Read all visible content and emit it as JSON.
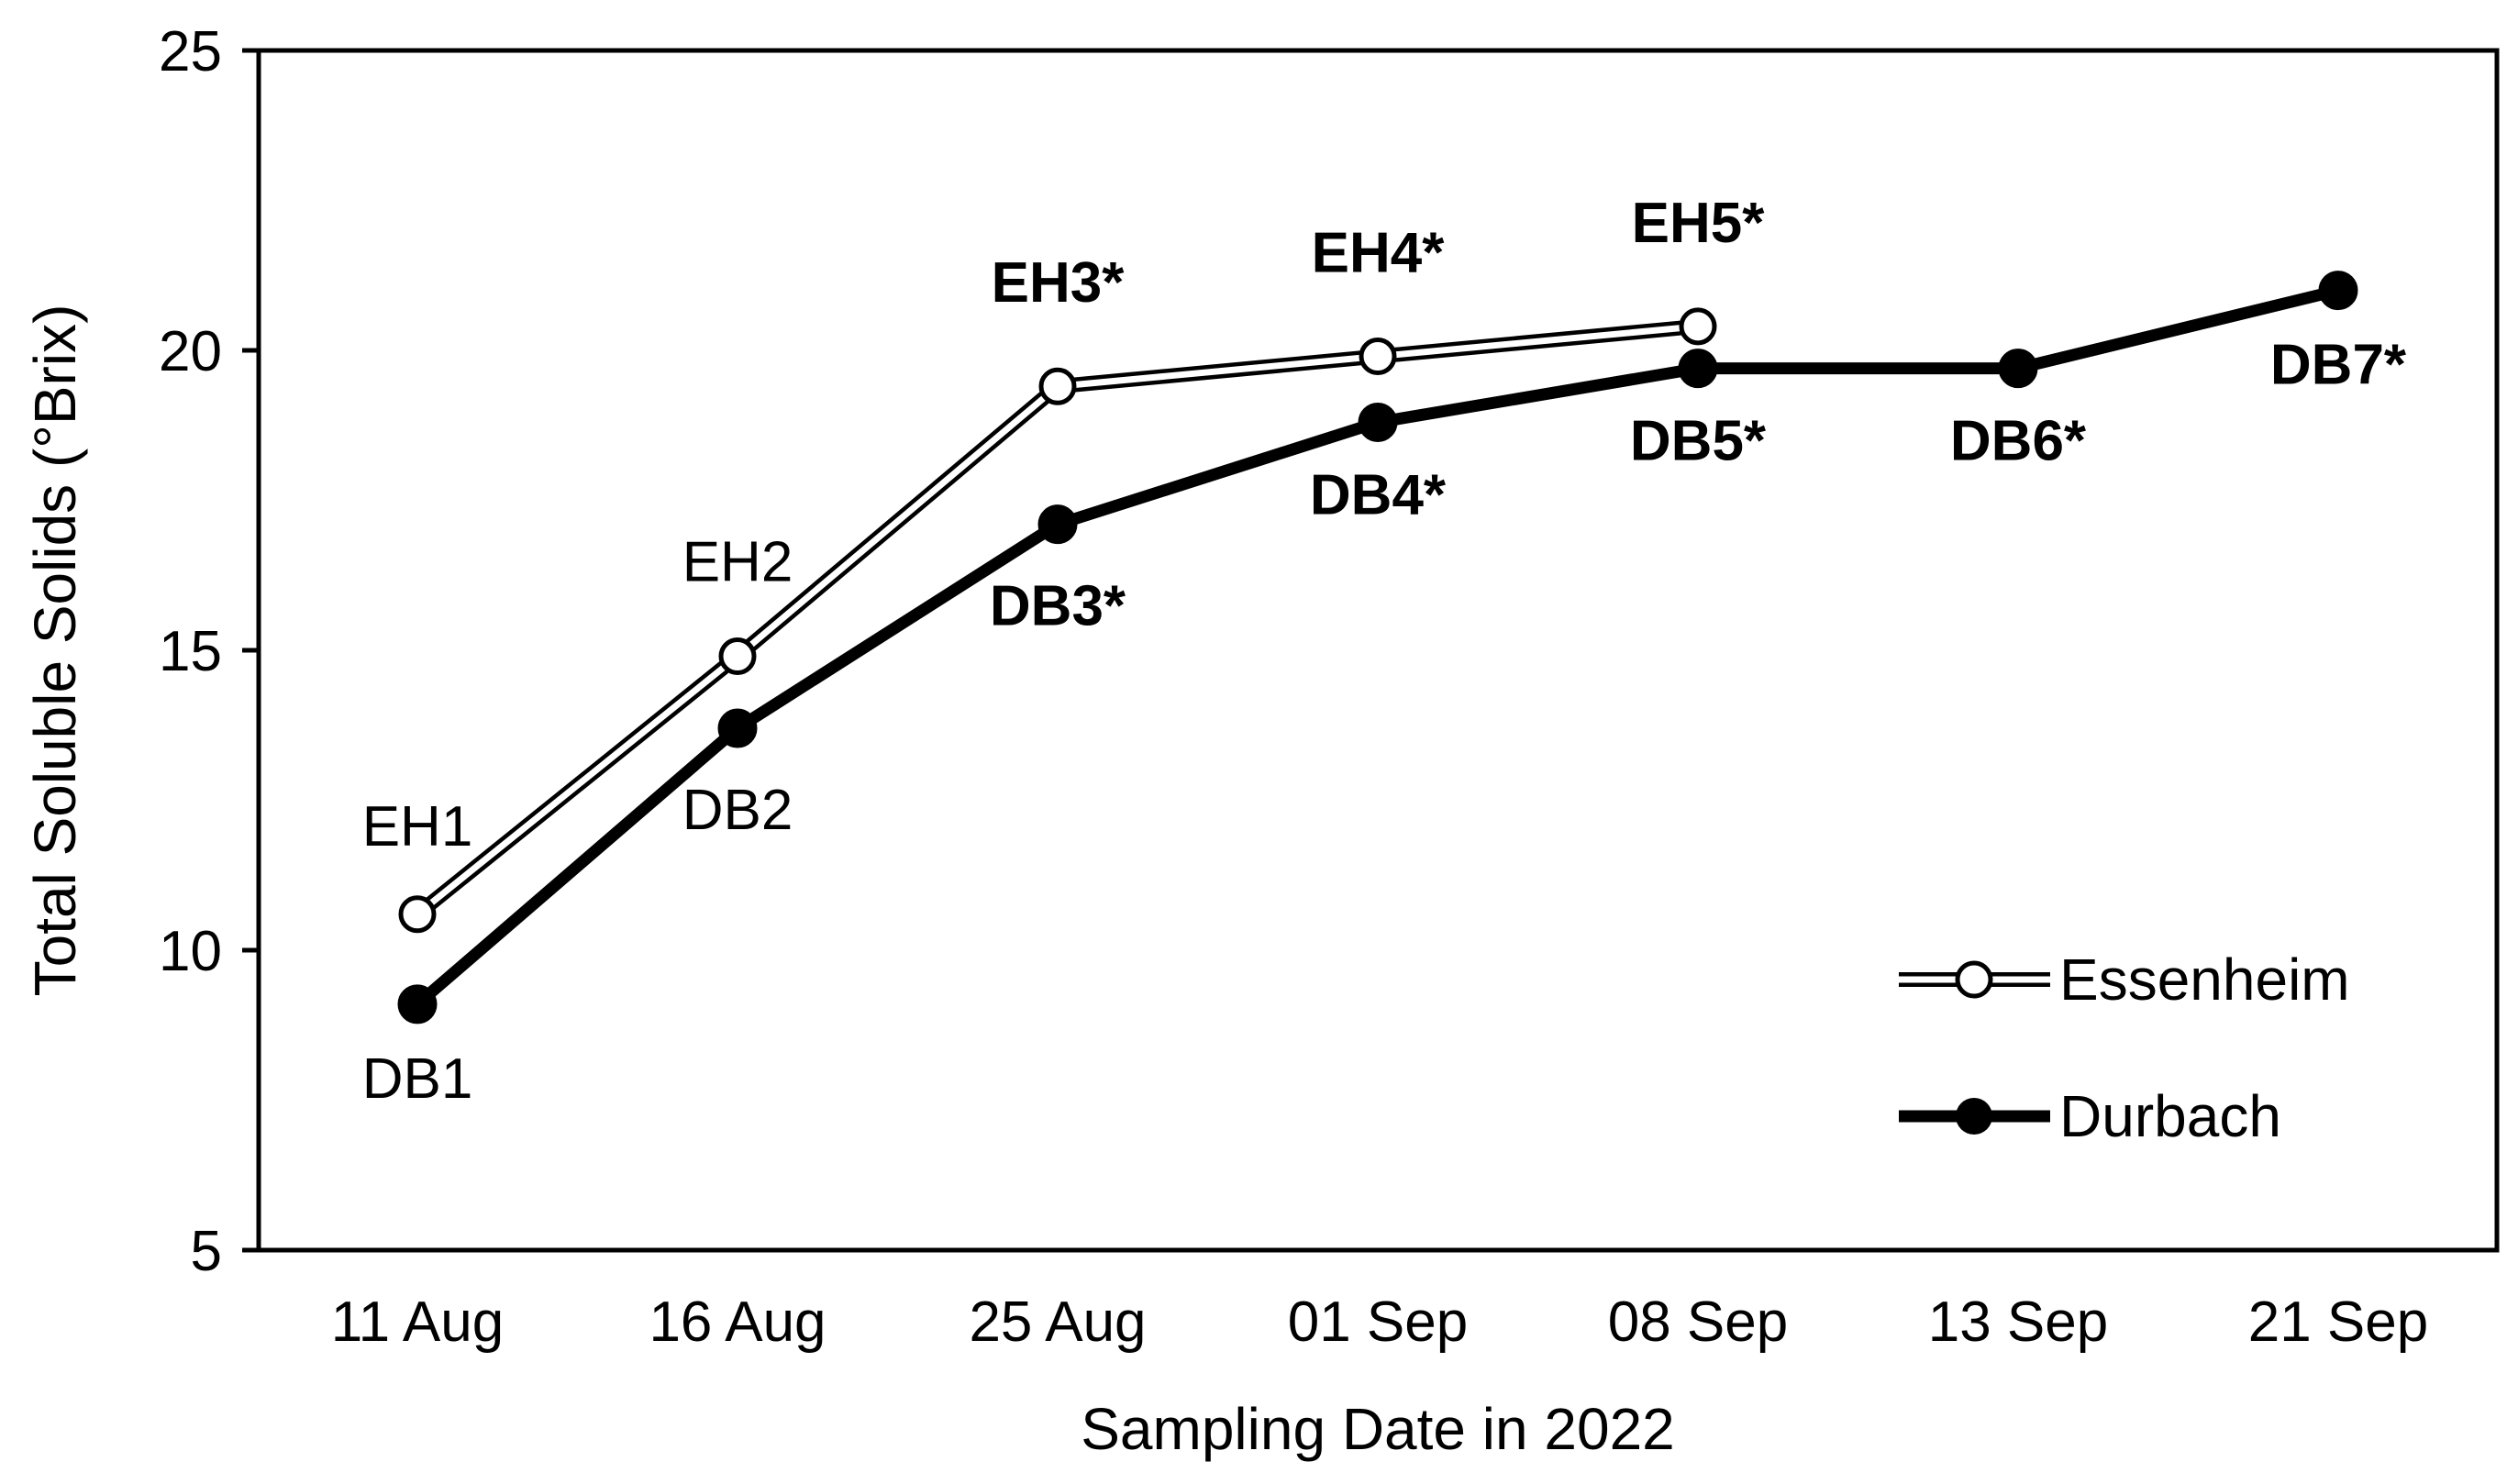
{
  "chart_data": {
    "type": "line",
    "title": "",
    "xlabel": "Sampling Date in 2022",
    "ylabel": "Total Soluble Solids (°Brix)",
    "categories": [
      "11 Aug",
      "16 Aug",
      "25 Aug",
      "01 Sep",
      "08 Sep",
      "13 Sep",
      "21 Sep"
    ],
    "ylim": [
      5,
      25
    ],
    "yticks": [
      5,
      10,
      15,
      20,
      25
    ],
    "grid": false,
    "legend_position": "bottom-right",
    "series": [
      {
        "name": "Essenheim",
        "marker": "open-circle",
        "color": "#000000",
        "values": [
          10.6,
          14.9,
          19.4,
          19.9,
          20.4,
          null,
          null
        ],
        "labels": [
          "EH1",
          "EH2",
          "EH3*",
          "EH4*",
          "EH5*",
          null,
          null
        ]
      },
      {
        "name": "Durbach",
        "marker": "filled-circle",
        "color": "#000000",
        "values": [
          9.1,
          13.7,
          17.1,
          18.8,
          19.7,
          19.7,
          21.0
        ],
        "labels": [
          "DB1",
          "DB2",
          "DB3*",
          "DB4*",
          "DB5*",
          "DB6*",
          "DB7*"
        ]
      }
    ]
  }
}
